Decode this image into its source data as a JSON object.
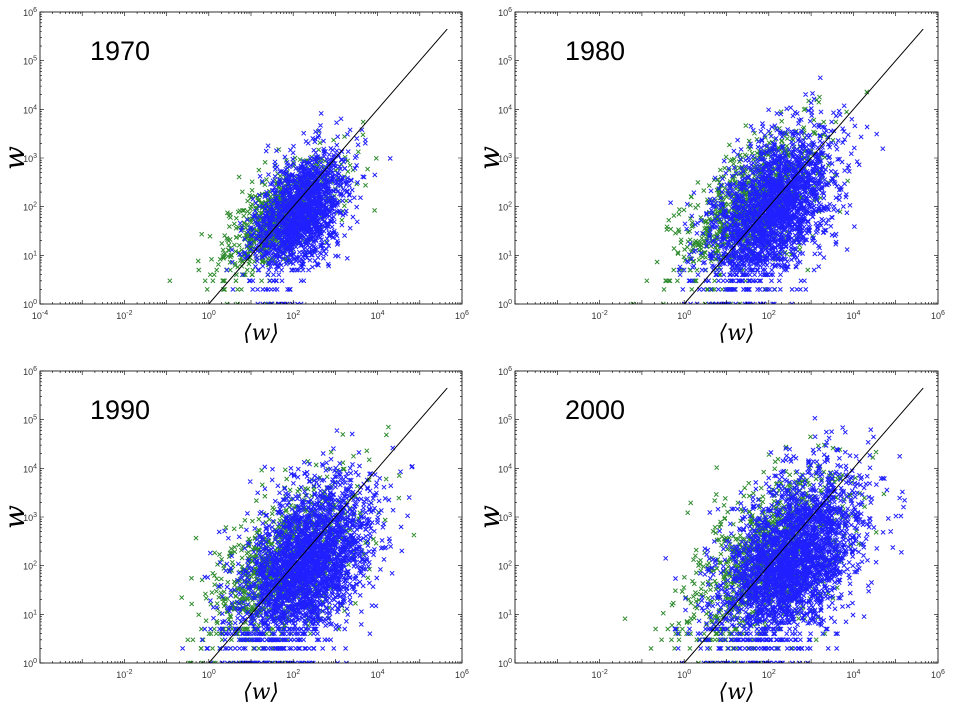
{
  "chart_data": [
    {
      "type": "scatter",
      "title": "1970",
      "xlabel": "⟨w⟩",
      "ylabel": "w",
      "xscale": "log",
      "yscale": "log",
      "xlim_exp": [
        -4,
        6
      ],
      "ylim_exp": [
        0,
        6
      ],
      "xtick_exps": [
        -4,
        -2,
        0,
        2,
        4,
        6
      ],
      "ytick_exps": [
        0,
        1,
        2,
        3,
        4,
        5,
        6
      ],
      "reference_line": "y = x",
      "series": [
        {
          "color": "#2e8b2e",
          "marker": "x",
          "cloud": {
            "center": [
              1.7,
              1.8
            ],
            "spread_x": 0.65,
            "spread_y": 0.45,
            "xmin": -1.6,
            "xmax": 4.3,
            "ymax": 4.7,
            "count": 900
          }
        },
        {
          "color": "#1f1fff",
          "marker": "x",
          "cloud": {
            "center": [
              2.2,
              1.9
            ],
            "spread_x": 0.55,
            "spread_y": 0.55,
            "xmin": -0.8,
            "xmax": 4.3,
            "ymax": 4.7,
            "count": 1600
          }
        }
      ]
    },
    {
      "type": "scatter",
      "title": "1980",
      "xlabel": "⟨w⟩",
      "ylabel": "w",
      "xscale": "log",
      "yscale": "log",
      "xlim_exp": [
        -4,
        6
      ],
      "ylim_exp": [
        0,
        6
      ],
      "xtick_exps": [
        -2,
        0,
        2,
        4,
        6
      ],
      "ytick_exps": [
        0,
        1,
        2,
        3,
        4,
        5,
        6
      ],
      "reference_line": "y = x",
      "series": [
        {
          "color": "#2e8b2e",
          "marker": "x",
          "cloud": {
            "center": [
              1.6,
              2.0
            ],
            "spread_x": 0.8,
            "spread_y": 0.6,
            "xmin": -1.6,
            "xmax": 4.7,
            "ymax": 5.1,
            "count": 1000
          }
        },
        {
          "color": "#1f1fff",
          "marker": "x",
          "cloud": {
            "center": [
              2.1,
              1.9
            ],
            "spread_x": 0.75,
            "spread_y": 0.7,
            "xmin": -0.8,
            "xmax": 4.7,
            "ymax": 5.1,
            "count": 2200
          }
        }
      ]
    },
    {
      "type": "scatter",
      "title": "1990",
      "xlabel": "⟨w⟩",
      "ylabel": "w",
      "xscale": "log",
      "yscale": "log",
      "xlim_exp": [
        -4,
        6
      ],
      "ylim_exp": [
        0,
        6
      ],
      "xtick_exps": [
        -2,
        0,
        2,
        4,
        6
      ],
      "ytick_exps": [
        0,
        1,
        2,
        3,
        4,
        5,
        6
      ],
      "reference_line": "y = x",
      "series": [
        {
          "color": "#2e8b2e",
          "marker": "x",
          "cloud": {
            "center": [
              1.8,
              2.0
            ],
            "spread_x": 0.85,
            "spread_y": 0.7,
            "xmin": -1.6,
            "xmax": 5.0,
            "ymax": 5.3,
            "count": 1100
          }
        },
        {
          "color": "#1f1fff",
          "marker": "x",
          "cloud": {
            "center": [
              2.3,
              2.0
            ],
            "spread_x": 0.8,
            "spread_y": 0.75,
            "xmin": -0.9,
            "xmax": 5.0,
            "ymax": 5.3,
            "count": 2600
          }
        }
      ]
    },
    {
      "type": "scatter",
      "title": "2000",
      "xlabel": "⟨w⟩",
      "ylabel": "w",
      "xscale": "log",
      "yscale": "log",
      "xlim_exp": [
        -4,
        6
      ],
      "ylim_exp": [
        0,
        6
      ],
      "xtick_exps": [
        -2,
        0,
        2,
        4,
        6
      ],
      "ytick_exps": [
        0,
        1,
        2,
        3,
        4,
        5,
        6
      ],
      "reference_line": "y = x",
      "series": [
        {
          "color": "#2e8b2e",
          "marker": "x",
          "cloud": {
            "center": [
              1.9,
              2.1
            ],
            "spread_x": 0.9,
            "spread_y": 0.75,
            "xmin": -2.0,
            "xmax": 5.3,
            "ymax": 5.5,
            "count": 1100
          }
        },
        {
          "color": "#1f1fff",
          "marker": "x",
          "cloud": {
            "center": [
              2.5,
              2.1
            ],
            "spread_x": 0.85,
            "spread_y": 0.8,
            "xmin": -1.3,
            "xmax": 5.3,
            "ymax": 5.5,
            "count": 2800
          }
        }
      ]
    }
  ]
}
